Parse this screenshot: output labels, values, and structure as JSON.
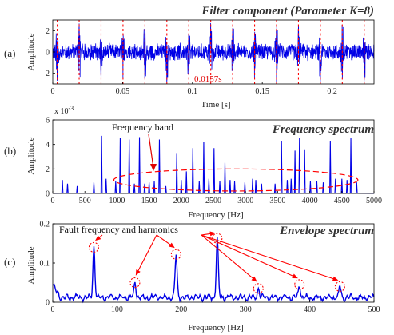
{
  "colors": {
    "signal": "#0000e6",
    "marker": "#ff0000",
    "axis": "#000000"
  },
  "chart_data": [
    {
      "panel": "(a)",
      "type": "line",
      "title": "Filter component (Parameter K=8)",
      "title_prefix": "Filter component (Parameter ",
      "title_k": "K",
      "title_suffix": "=8)",
      "xlabel": "Time [s]",
      "ylabel": "Amplitude",
      "xlim": [
        0,
        0.23
      ],
      "ylim": [
        -3,
        3
      ],
      "xticks": [
        "0",
        "0.05",
        "0.1",
        "0.15",
        "0.2"
      ],
      "yticks": [
        "2",
        "0",
        "-2"
      ],
      "impulse_times": [
        0.0032,
        0.0189,
        0.0346,
        0.0503,
        0.066,
        0.0817,
        0.0974,
        0.1131,
        0.1288,
        0.1445,
        0.1602,
        0.1759,
        0.1916,
        0.2073,
        0.223
      ],
      "period_label": "0.0157s",
      "noise_amplitude": 0.8,
      "impulse_amplitude": 2.6
    },
    {
      "panel": "(b)",
      "type": "line",
      "title": "Frequency spectrum",
      "xlabel": "Frequency [Hz]",
      "ylabel": "Amplitude",
      "exponent_label": "x 10",
      "exponent_power": "-3",
      "xlim": [
        0,
        5000
      ],
      "ylim": [
        0,
        0.006
      ],
      "xticks": [
        "0",
        "500",
        "1000",
        "1500",
        "2000",
        "2500",
        "3000",
        "3500",
        "4000",
        "4500",
        "5000"
      ],
      "yticks": [
        "6",
        "4",
        "2",
        "0"
      ],
      "annotation": "Frequency band",
      "peaks": [
        {
          "x": 150,
          "y": 0.0011
        },
        {
          "x": 230,
          "y": 0.0008
        },
        {
          "x": 380,
          "y": 0.0006
        },
        {
          "x": 640,
          "y": 0.0009
        },
        {
          "x": 760,
          "y": 0.0047
        },
        {
          "x": 830,
          "y": 0.0012
        },
        {
          "x": 980,
          "y": 0.001
        },
        {
          "x": 1050,
          "y": 0.0045
        },
        {
          "x": 1190,
          "y": 0.0044
        },
        {
          "x": 1270,
          "y": 0.0008
        },
        {
          "x": 1350,
          "y": 0.0046
        },
        {
          "x": 1430,
          "y": 0.0008
        },
        {
          "x": 1500,
          "y": 0.0009
        },
        {
          "x": 1580,
          "y": 0.001
        },
        {
          "x": 1660,
          "y": 0.0044
        },
        {
          "x": 1760,
          "y": 0.0006
        },
        {
          "x": 1930,
          "y": 0.0033
        },
        {
          "x": 2000,
          "y": 0.0011
        },
        {
          "x": 2080,
          "y": 0.0018
        },
        {
          "x": 2180,
          "y": 0.0037
        },
        {
          "x": 2280,
          "y": 0.001
        },
        {
          "x": 2350,
          "y": 0.0042
        },
        {
          "x": 2430,
          "y": 0.0012
        },
        {
          "x": 2510,
          "y": 0.0037
        },
        {
          "x": 2600,
          "y": 0.001
        },
        {
          "x": 2680,
          "y": 0.0025
        },
        {
          "x": 2760,
          "y": 0.0011
        },
        {
          "x": 2830,
          "y": 0.001
        },
        {
          "x": 2990,
          "y": 0.0009
        },
        {
          "x": 3110,
          "y": 0.0012
        },
        {
          "x": 3160,
          "y": 0.0011
        },
        {
          "x": 3250,
          "y": 0.0008
        },
        {
          "x": 3460,
          "y": 0.0008
        },
        {
          "x": 3560,
          "y": 0.0043
        },
        {
          "x": 3650,
          "y": 0.0011
        },
        {
          "x": 3710,
          "y": 0.0012
        },
        {
          "x": 3770,
          "y": 0.0035
        },
        {
          "x": 3840,
          "y": 0.0045
        },
        {
          "x": 3920,
          "y": 0.0036
        },
        {
          "x": 4010,
          "y": 0.001
        },
        {
          "x": 4110,
          "y": 0.001
        },
        {
          "x": 4210,
          "y": 0.0009
        },
        {
          "x": 4320,
          "y": 0.0043
        },
        {
          "x": 4400,
          "y": 0.0012
        },
        {
          "x": 4500,
          "y": 0.0012
        },
        {
          "x": 4580,
          "y": 0.0011
        },
        {
          "x": 4640,
          "y": 0.0045
        },
        {
          "x": 4730,
          "y": 0.0009
        }
      ],
      "band_ellipse": {
        "x_center": 2850,
        "x_halfwidth": 1900,
        "y_center": 0.0011,
        "y_halfheight": 0.0009
      }
    },
    {
      "panel": "(c)",
      "type": "line",
      "title": "Envelope spectrum",
      "xlabel": "Frequency [Hz]",
      "ylabel": "Amplitude",
      "xlim": [
        0,
        500
      ],
      "ylim": [
        0,
        0.2
      ],
      "xticks": [
        "0",
        "100",
        "200",
        "300",
        "400",
        "500"
      ],
      "yticks": [
        "0.2",
        "0.1",
        "0"
      ],
      "annotation": "Fault frequency and harmonics",
      "harmonics": [
        {
          "x": 64,
          "y": 0.14
        },
        {
          "x": 128,
          "y": 0.05
        },
        {
          "x": 192,
          "y": 0.122
        },
        {
          "x": 256,
          "y": 0.163
        },
        {
          "x": 320,
          "y": 0.035
        },
        {
          "x": 384,
          "y": 0.045
        },
        {
          "x": 447,
          "y": 0.04
        }
      ],
      "baseline": 0.012
    }
  ]
}
